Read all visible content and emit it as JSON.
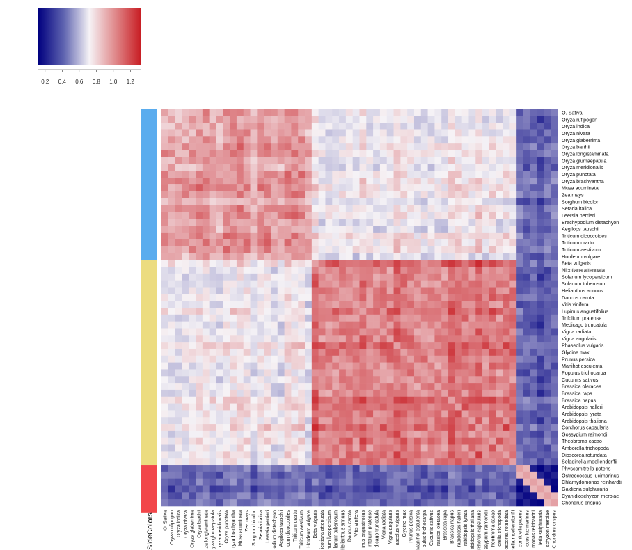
{
  "chart_data": {
    "type": "heatmap",
    "title": "",
    "colorbar": {
      "ticks": [
        "0.2",
        "0.4",
        "0.6",
        "0.8",
        "1.0",
        "1.2"
      ],
      "tick_values": [
        0.2,
        0.4,
        0.6,
        0.8,
        1.0,
        1.2
      ],
      "range": [
        0.12,
        1.32
      ],
      "colors": {
        "low": "#00007f",
        "mid": "#f6f3f6",
        "high": "#c81e24"
      }
    },
    "side_colors_label": "SideColors",
    "side_colors": [
      {
        "color": "#5aacee",
        "from": 0,
        "to": 21
      },
      {
        "color": "#ecdc80",
        "from": 22,
        "to": 51
      },
      {
        "color": "#f2464a",
        "from": 52,
        "to": 58
      }
    ],
    "group_means": [
      [
        1.0,
        0.8,
        0.4
      ],
      [
        0.8,
        1.12,
        0.4
      ],
      [
        0.4,
        0.4,
        0.9
      ]
    ],
    "row_labels": [
      "O. Sativa",
      "Oryza rufipogon",
      "Oryza indica",
      "Oryza nivara",
      "Oryza glaberrima",
      "Oryza barthii",
      "Oryza longistaminata",
      "Oryza glumaepatula",
      "Oryza meridionalis",
      "Oryza punctata",
      "Oryza brachyantha",
      "Musa acuminata",
      "Zea mays",
      "Sorghum bicolor",
      "Setaria italica",
      "Leersia perrieri",
      "Brachypodium distachyon",
      "Aegilops tauschii",
      "Triticum dicoccoides",
      "Triticum urartu",
      "Triticum aestivum",
      "Hordeum vulgare",
      "Beta vulgaris",
      "Nicotiana attenuata",
      "Solanum lycopersicum",
      "Solanum tuberosum",
      "Helianthus annuus",
      "Daucus carota",
      "Vitis vinifera",
      "Lupinus angustifolius",
      "Trifolium pratense",
      "Medicago truncatula",
      "Vigna radiata",
      "Vigna angularis",
      "Phaseolus vulgaris",
      "Glycine max",
      "Prunus persica",
      "Manihot esculenta",
      "Populus trichocarpa",
      "Cucumis sativus",
      "Brassica oleracea",
      "Brassica rapa",
      "Brassica napus",
      "Arabidopsis halleri",
      "Arabidopsis lyrata",
      "Arabidopsis thaliana",
      "Corchorus capsularis",
      "Gossypium raimondii",
      "Theobroma cacao",
      "Amborella trichopoda",
      "Dioscorea rotundata",
      "Selaginella moellendorffii",
      "Physcomitrella patens",
      "Ostreococcus lucimarinus",
      "Chlamydomonas reinhardtii",
      "Galdieria sulphuraria",
      "Cyanidioschyzon merolae",
      "Chondrus crispus"
    ],
    "col_labels": [
      "O. Sativa",
      "Oryza rufipogon",
      "Oryza indica",
      "Oryza nivara",
      "Oryza glaberrima",
      "Oryza barthii",
      "za longistaminata",
      "yza glumaepatula",
      "ryza meridionalis",
      "Oryza punctata",
      "ryza brachyantha",
      "Musa acuminata",
      "Zea mays",
      "Sorghum bicolor",
      "Setaria italica",
      "Leersia perrieri",
      "odium distachyon",
      "Aegilops tauschii",
      "icum dicoccoides",
      "Triticum urartu",
      "Triticum aestivum",
      "Hordeum vulgare",
      "Beta vulgaris",
      "icotiana attenuata",
      "num lycopersicum",
      "lanum tuberosum",
      "Helianthus annuus",
      "Daucus carota",
      "Vitis vinifera",
      "inus angustifolius",
      "rifolium pratense",
      "dicago truncatula",
      "Vigna radiata",
      "Vigna angularis",
      "aseolus vulgaris",
      "Glycine max",
      "Prunus persica",
      "Manihot esculenta",
      "pulus trichocarpa",
      "Cucumis sativus",
      "rassica oleracea",
      "Brassica rapa",
      "Brassica napus",
      "rabidopsis halleri",
      "rabidopsis lyrata",
      "abidopsis thaliana",
      "orchorus capsularis",
      "ssypium raimondii",
      "heobroma cacao",
      "orella trichopoda",
      "oscorea rotundata",
      "ginella moellendorffii",
      "comitrella patens",
      "ccus lucimarinus",
      "monas reinhardtii",
      "ieria sulphuraria",
      "schyzon merolae",
      "Chondrus crispus"
    ]
  }
}
